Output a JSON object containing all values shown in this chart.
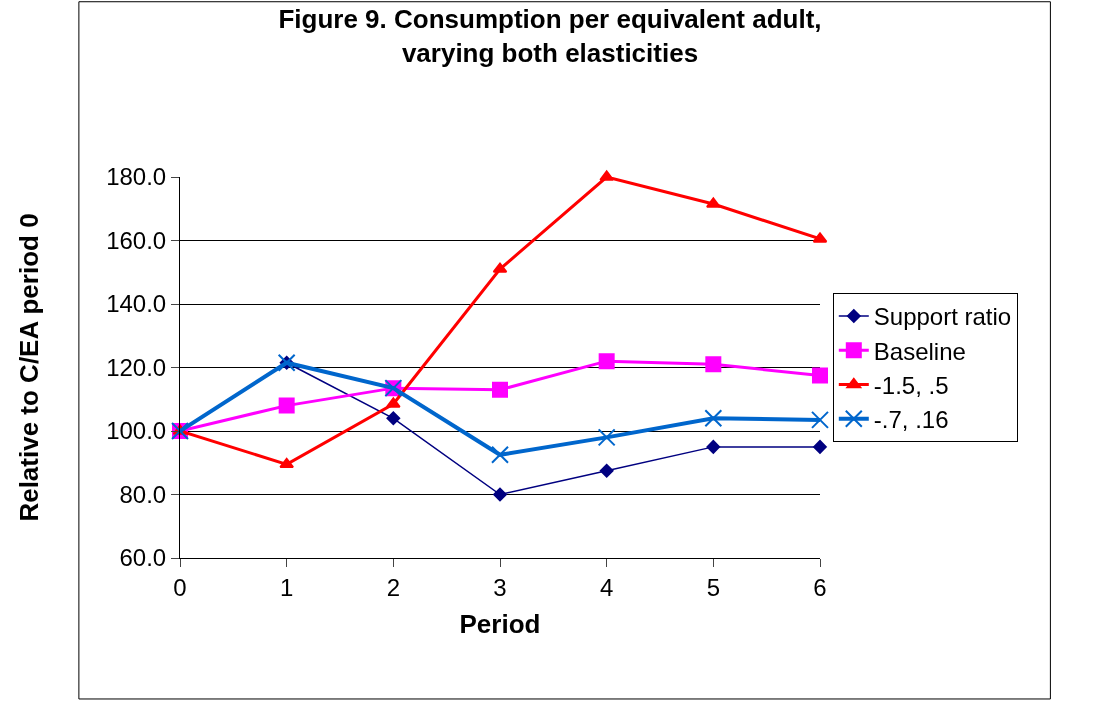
{
  "chart_data": {
    "type": "line",
    "title": "Figure 9. Consumption per equivalent adult,\nvarying both elasticities",
    "xlabel": "Period",
    "ylabel": "Relative to C/EA period 0",
    "x": [
      0,
      1,
      2,
      3,
      4,
      5,
      6
    ],
    "xlim": [
      0,
      6
    ],
    "xticks": [
      0,
      1,
      2,
      3,
      4,
      5,
      6
    ],
    "ylim": [
      60,
      180
    ],
    "yticks": [
      {
        "value": 60,
        "label": "60.0"
      },
      {
        "value": 80,
        "label": "80.0"
      },
      {
        "value": 100,
        "label": "100.0"
      },
      {
        "value": 120,
        "label": "120.0"
      },
      {
        "value": 140,
        "label": "140.0"
      },
      {
        "value": 160,
        "label": "160.0"
      },
      {
        "value": 180,
        "label": "180.0"
      }
    ],
    "grid": "y",
    "legend": "right",
    "series": [
      {
        "name": "Support ratio",
        "color": "#000080",
        "marker": "diamond",
        "values": [
          100,
          121.5,
          104,
          80,
          87.5,
          95,
          95
        ]
      },
      {
        "name": "Baseline",
        "color": "#ff00ff",
        "marker": "square",
        "values": [
          100,
          108,
          113.5,
          113,
          122,
          121,
          117.5
        ]
      },
      {
        "name": "-1.5, .5",
        "color": "#ff0000",
        "marker": "triangle",
        "values": [
          100,
          89.5,
          108.5,
          151,
          180,
          171.5,
          160.5
        ]
      },
      {
        "name": "-.7, .16",
        "color": "#0066cc",
        "marker": "cross",
        "values": [
          100,
          121.5,
          113.5,
          92.5,
          98,
          104,
          103.5
        ]
      }
    ]
  }
}
